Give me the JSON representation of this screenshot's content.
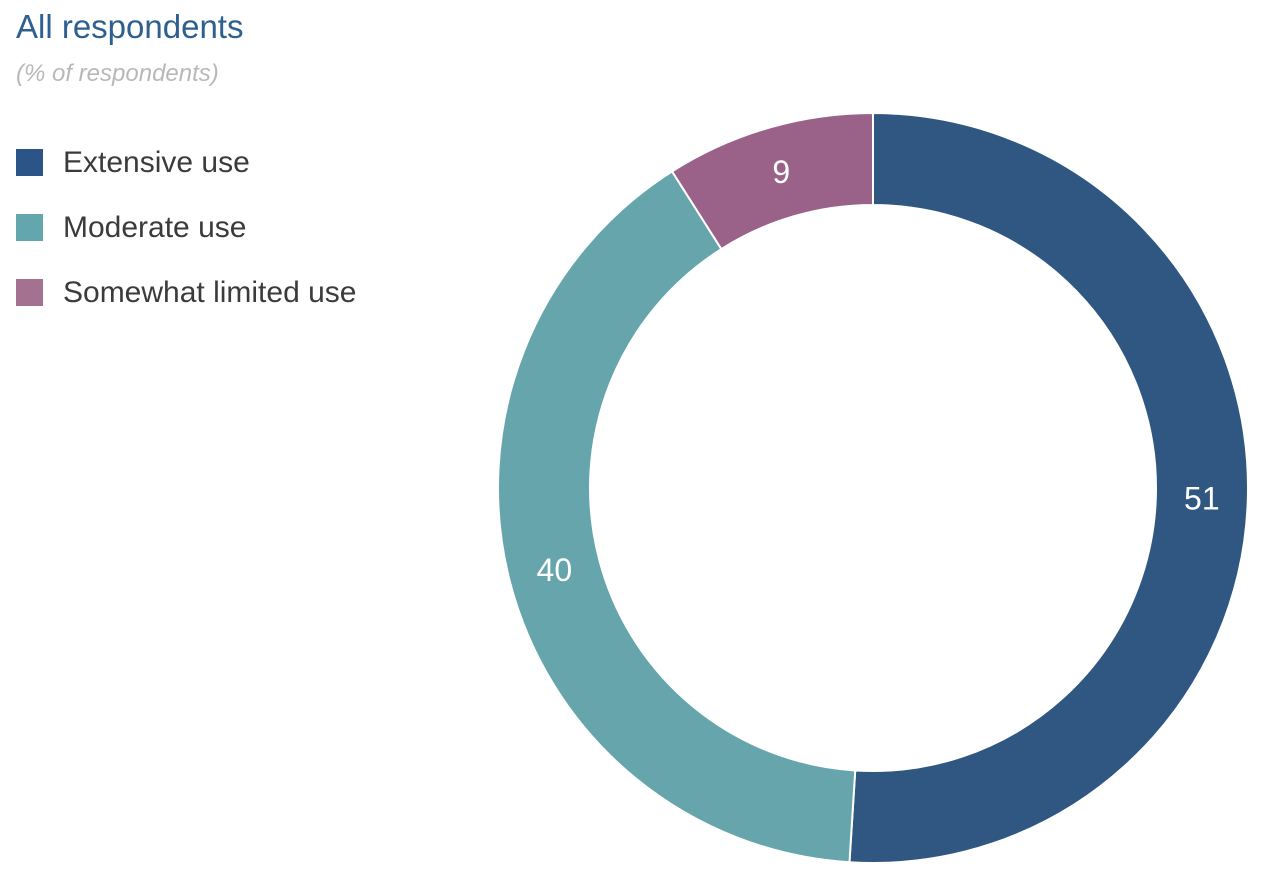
{
  "title": "All respondents",
  "subtitle": "(% of respondents)",
  "legend": [
    {
      "label": "Extensive use",
      "color": "#2b5488"
    },
    {
      "label": "Moderate use",
      "color": "#63a6ae"
    },
    {
      "label": "Somewhat limited use",
      "color": "#a47290"
    }
  ],
  "chart_data": {
    "type": "pie",
    "title": "All respondents",
    "subtitle": "(% of respondents)",
    "categories": [
      "Extensive use",
      "Moderate use",
      "Somewhat limited use"
    ],
    "values": [
      51,
      40,
      9
    ],
    "colors": [
      "#305781",
      "#67a5ad",
      "#9a6289"
    ],
    "legend_placement": "top-left",
    "donut": true
  }
}
